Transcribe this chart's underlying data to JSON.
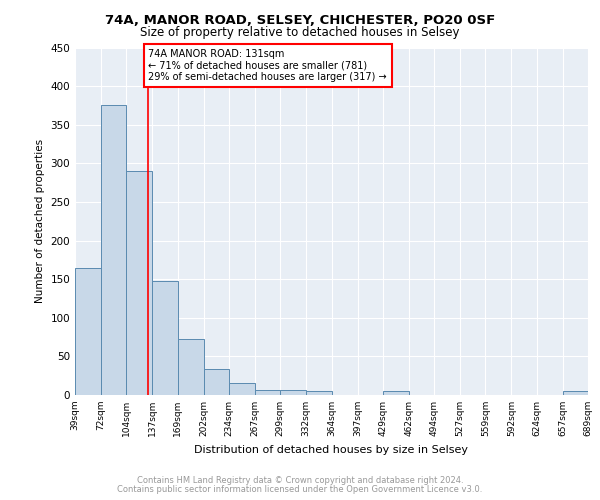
{
  "title1": "74A, MANOR ROAD, SELSEY, CHICHESTER, PO20 0SF",
  "title2": "Size of property relative to detached houses in Selsey",
  "xlabel": "Distribution of detached houses by size in Selsey",
  "ylabel": "Number of detached properties",
  "bar_edges": [
    39,
    72,
    104,
    137,
    169,
    202,
    234,
    267,
    299,
    332,
    364,
    397,
    429,
    462,
    494,
    527,
    559,
    592,
    624,
    657,
    689
  ],
  "bar_heights": [
    165,
    375,
    290,
    148,
    72,
    34,
    15,
    7,
    7,
    5,
    0,
    0,
    5,
    0,
    0,
    0,
    0,
    0,
    0,
    5
  ],
  "bar_color": "#c8d8e8",
  "bar_edge_color": "#5a8ab0",
  "vline_x": 131,
  "vline_color": "red",
  "annotation_text": "74A MANOR ROAD: 131sqm\n← 71% of detached houses are smaller (781)\n29% of semi-detached houses are larger (317) →",
  "annotation_box_color": "white",
  "annotation_box_edge": "red",
  "ylim": [
    0,
    450
  ],
  "yticks": [
    0,
    50,
    100,
    150,
    200,
    250,
    300,
    350,
    400,
    450
  ],
  "tick_labels": [
    "39sqm",
    "72sqm",
    "104sqm",
    "137sqm",
    "169sqm",
    "202sqm",
    "234sqm",
    "267sqm",
    "299sqm",
    "332sqm",
    "364sqm",
    "397sqm",
    "429sqm",
    "462sqm",
    "494sqm",
    "527sqm",
    "559sqm",
    "592sqm",
    "624sqm",
    "657sqm",
    "689sqm"
  ],
  "footer1": "Contains HM Land Registry data © Crown copyright and database right 2024.",
  "footer2": "Contains public sector information licensed under the Open Government Licence v3.0.",
  "bg_color": "#e8eef5",
  "grid_color": "white"
}
